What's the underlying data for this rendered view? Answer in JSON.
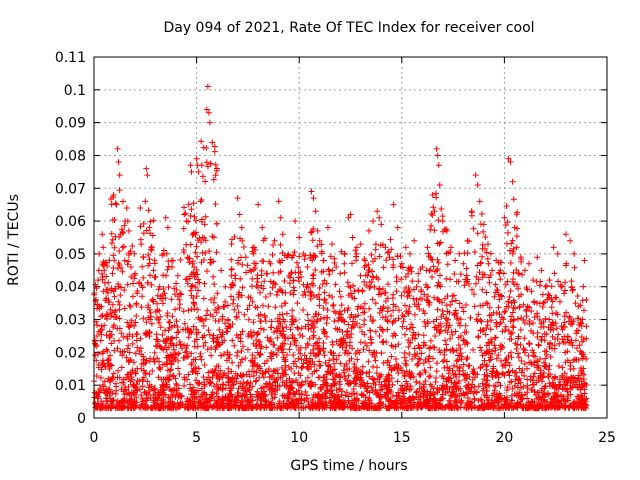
{
  "chart_data": {
    "type": "scatter",
    "title": "Day 094 of 2021, Rate Of TEC Index for receiver cool",
    "xlabel": "GPS time / hours",
    "ylabel": "ROTI / TECUs",
    "xlim": [
      0,
      25
    ],
    "ylim": [
      0,
      0.11
    ],
    "xticks": [
      0,
      5,
      10,
      15,
      20,
      25
    ],
    "xtick_labels": [
      "0",
      "5",
      "10",
      "15",
      "20",
      "25"
    ],
    "yticks": [
      0,
      0.01,
      0.02,
      0.03,
      0.04,
      0.05,
      0.06,
      0.07,
      0.08,
      0.09,
      0.1,
      0.11
    ],
    "ytick_labels": [
      "0",
      "0.01",
      "0.02",
      "0.03",
      "0.04",
      "0.05",
      "0.06",
      "0.07",
      "0.08",
      "0.09",
      "0.1",
      "0.11"
    ],
    "grid": true,
    "marker": "plus",
    "color": "#ff0000",
    "series": [
      {
        "values_note_x_hours_y_tecus": "",
        "points": [
          [
            0.1,
            0.036
          ],
          [
            0.15,
            0.025
          ],
          [
            0.2,
            0.042
          ],
          [
            0.25,
            0.05
          ],
          [
            0.3,
            0.034
          ],
          [
            0.35,
            0.028
          ],
          [
            0.4,
            0.056
          ],
          [
            0.45,
            0.052
          ],
          [
            0.5,
            0.045
          ],
          [
            0.6,
            0.039
          ],
          [
            0.7,
            0.036
          ],
          [
            0.8,
            0.033
          ],
          [
            0.9,
            0.044
          ],
          [
            1.0,
            0.037
          ],
          [
            1.1,
            0.065
          ],
          [
            1.15,
            0.082
          ],
          [
            1.2,
            0.078
          ],
          [
            1.25,
            0.074
          ],
          [
            1.3,
            0.056
          ],
          [
            1.4,
            0.052
          ],
          [
            1.5,
            0.048
          ],
          [
            1.6,
            0.064
          ],
          [
            1.65,
            0.06
          ],
          [
            1.7,
            0.057
          ],
          [
            1.8,
            0.046
          ],
          [
            1.9,
            0.041
          ],
          [
            2.0,
            0.044
          ],
          [
            2.1,
            0.038
          ],
          [
            2.2,
            0.041
          ],
          [
            2.3,
            0.053
          ],
          [
            2.4,
            0.049
          ],
          [
            2.5,
            0.066
          ],
          [
            2.55,
            0.076
          ],
          [
            2.6,
            0.074
          ],
          [
            2.7,
            0.058
          ],
          [
            2.8,
            0.052
          ],
          [
            2.9,
            0.045
          ],
          [
            3.0,
            0.043
          ],
          [
            3.2,
            0.04
          ],
          [
            3.4,
            0.05
          ],
          [
            3.5,
            0.061
          ],
          [
            3.6,
            0.058
          ],
          [
            3.8,
            0.046
          ],
          [
            4.0,
            0.041
          ],
          [
            4.2,
            0.038
          ],
          [
            4.4,
            0.062
          ],
          [
            4.5,
            0.06
          ],
          [
            4.7,
            0.077
          ],
          [
            4.75,
            0.075
          ],
          [
            4.8,
            0.047
          ],
          [
            4.9,
            0.043
          ],
          [
            5.0,
            0.079
          ],
          [
            5.05,
            0.077
          ],
          [
            5.1,
            0.075
          ],
          [
            5.2,
            0.066
          ],
          [
            5.3,
            0.055
          ],
          [
            5.4,
            0.059
          ],
          [
            5.5,
            0.094
          ],
          [
            5.55,
            0.101
          ],
          [
            5.6,
            0.093
          ],
          [
            5.65,
            0.09
          ],
          [
            5.7,
            0.036
          ],
          [
            5.8,
            0.031
          ],
          [
            6.0,
            0.022
          ],
          [
            6.2,
            0.045
          ],
          [
            6.4,
            0.04
          ],
          [
            6.6,
            0.028
          ],
          [
            6.8,
            0.036
          ],
          [
            7.0,
            0.067
          ],
          [
            7.1,
            0.062
          ],
          [
            7.2,
            0.058
          ],
          [
            7.4,
            0.049
          ],
          [
            7.6,
            0.045
          ],
          [
            7.8,
            0.052
          ],
          [
            8.0,
            0.065
          ],
          [
            8.2,
            0.058
          ],
          [
            8.4,
            0.044
          ],
          [
            8.6,
            0.047
          ],
          [
            8.8,
            0.054
          ],
          [
            9.0,
            0.066
          ],
          [
            9.1,
            0.061
          ],
          [
            9.2,
            0.056
          ],
          [
            9.4,
            0.049
          ],
          [
            9.6,
            0.044
          ],
          [
            9.8,
            0.06
          ],
          [
            10.0,
            0.055
          ],
          [
            10.2,
            0.05
          ],
          [
            10.4,
            0.046
          ],
          [
            10.6,
            0.069
          ],
          [
            10.7,
            0.067
          ],
          [
            10.8,
            0.063
          ],
          [
            10.9,
            0.057
          ],
          [
            11.0,
            0.054
          ],
          [
            11.2,
            0.048
          ],
          [
            11.4,
            0.058
          ],
          [
            11.6,
            0.053
          ],
          [
            11.8,
            0.046
          ],
          [
            12.0,
            0.044
          ],
          [
            12.2,
            0.047
          ],
          [
            12.4,
            0.061
          ],
          [
            12.5,
            0.062
          ],
          [
            12.6,
            0.055
          ],
          [
            12.8,
            0.05
          ],
          [
            13.0,
            0.053
          ],
          [
            13.2,
            0.048
          ],
          [
            13.4,
            0.057
          ],
          [
            13.6,
            0.06
          ],
          [
            13.8,
            0.063
          ],
          [
            13.9,
            0.061
          ],
          [
            14.0,
            0.059
          ],
          [
            14.2,
            0.052
          ],
          [
            14.4,
            0.049
          ],
          [
            14.6,
            0.065
          ],
          [
            14.8,
            0.058
          ],
          [
            15.0,
            0.047
          ],
          [
            15.2,
            0.052
          ],
          [
            15.4,
            0.05
          ],
          [
            15.6,
            0.054
          ],
          [
            15.8,
            0.044
          ],
          [
            16.0,
            0.046
          ],
          [
            16.2,
            0.045
          ],
          [
            16.4,
            0.049
          ],
          [
            16.6,
            0.063
          ],
          [
            16.7,
            0.082
          ],
          [
            16.75,
            0.08
          ],
          [
            16.8,
            0.077
          ],
          [
            16.85,
            0.071
          ],
          [
            17.0,
            0.06
          ],
          [
            17.2,
            0.057
          ],
          [
            17.4,
            0.052
          ],
          [
            17.6,
            0.048
          ],
          [
            17.8,
            0.05
          ],
          [
            18.0,
            0.047
          ],
          [
            18.2,
            0.054
          ],
          [
            18.4,
            0.063
          ],
          [
            18.6,
            0.074
          ],
          [
            18.7,
            0.071
          ],
          [
            18.8,
            0.066
          ],
          [
            19.0,
            0.059
          ],
          [
            19.2,
            0.053
          ],
          [
            19.4,
            0.045
          ],
          [
            19.6,
            0.048
          ],
          [
            19.8,
            0.045
          ],
          [
            20.0,
            0.061
          ],
          [
            20.2,
            0.079
          ],
          [
            20.3,
            0.078
          ],
          [
            20.4,
            0.072
          ],
          [
            20.5,
            0.058
          ],
          [
            20.6,
            0.052
          ],
          [
            20.8,
            0.049
          ],
          [
            21.0,
            0.045
          ],
          [
            21.2,
            0.047
          ],
          [
            21.4,
            0.042
          ],
          [
            21.6,
            0.049
          ],
          [
            21.8,
            0.045
          ],
          [
            22.0,
            0.04
          ],
          [
            22.2,
            0.042
          ],
          [
            22.4,
            0.052
          ],
          [
            22.6,
            0.05
          ],
          [
            22.8,
            0.04
          ],
          [
            23.0,
            0.056
          ],
          [
            23.2,
            0.054
          ],
          [
            23.4,
            0.05
          ],
          [
            23.6,
            0.034
          ],
          [
            23.8,
            0.03
          ],
          [
            23.9,
            0.048
          ],
          [
            24.0,
            0.036
          ]
        ]
      }
    ]
  }
}
